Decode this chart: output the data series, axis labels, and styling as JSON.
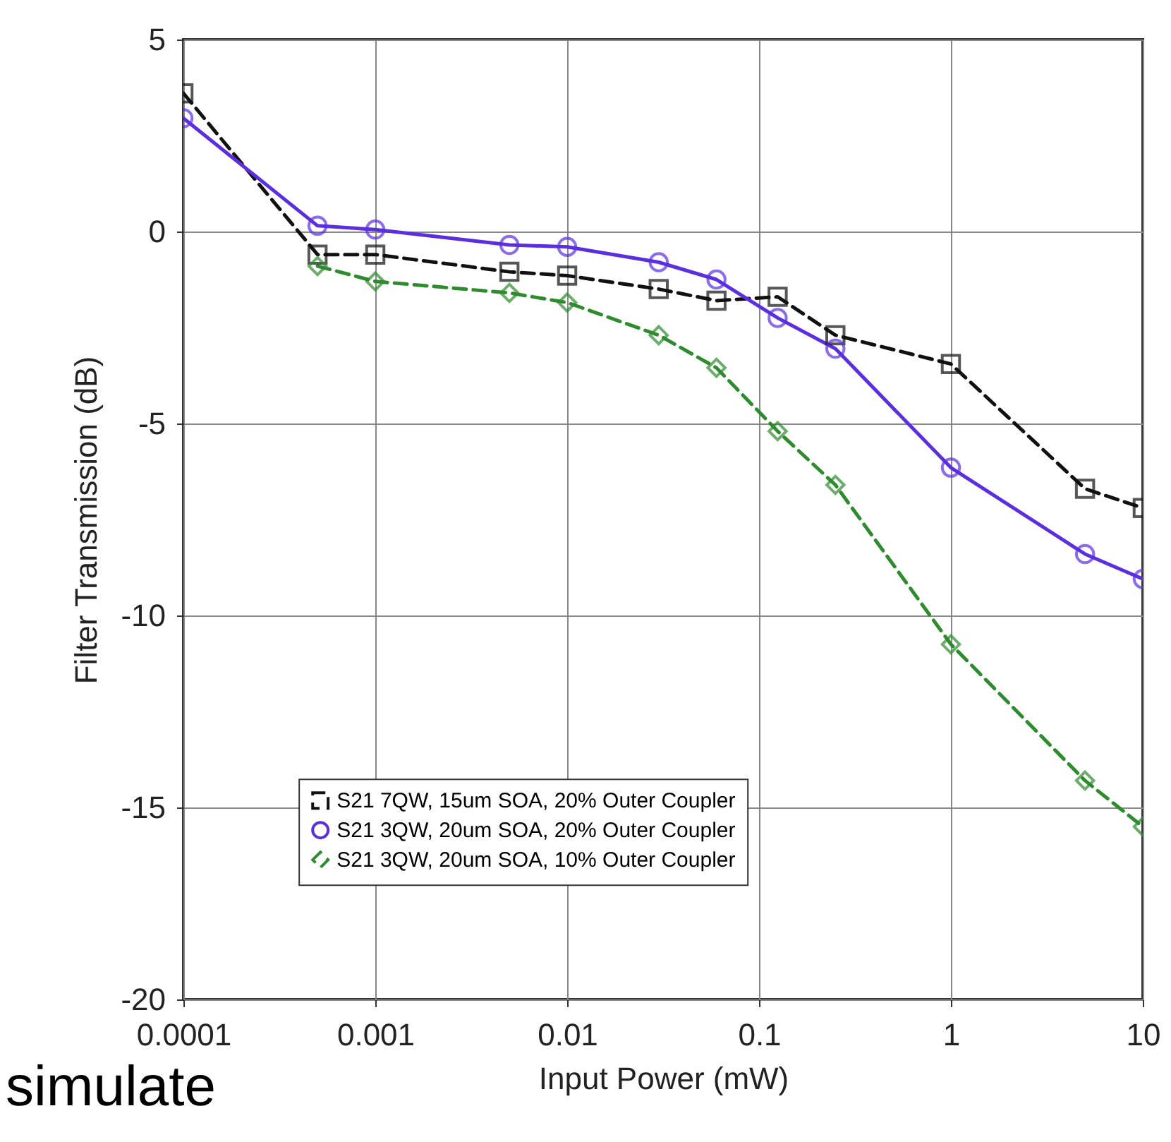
{
  "chart_data": {
    "type": "line",
    "xlabel": "Input Power (mW)",
    "ylabel": "Filter Transmission (dB)",
    "x": [
      0.0001,
      0.0005,
      0.001,
      0.005,
      0.01,
      0.03,
      0.06,
      0.125,
      0.25,
      1,
      5,
      10
    ],
    "series": [
      {
        "name": "S21 7QW, 15um SOA, 20% Outer Coupler",
        "color": "#111111",
        "marker": "square",
        "line_style": "dashed",
        "values": [
          3.6,
          -0.6,
          -0.6,
          -1.05,
          -1.15,
          -1.5,
          -1.8,
          -1.7,
          -2.7,
          -3.45,
          -6.7,
          -7.2
        ]
      },
      {
        "name": "S21 3QW, 20um SOA, 20% Outer Coupler",
        "color": "#5b2ee0",
        "marker": "circle",
        "line_style": "solid",
        "values": [
          2.95,
          0.15,
          0.05,
          -0.35,
          -0.4,
          -0.8,
          -1.25,
          -2.25,
          -3.05,
          -6.15,
          -8.4,
          -9.05
        ]
      },
      {
        "name": "S21 3QW, 20um SOA, 10% Outer Coupler",
        "color": "#2e8b2e",
        "marker": "diamond",
        "line_style": "dashed",
        "values": [
          null,
          -0.9,
          -1.3,
          -1.6,
          -1.85,
          -2.7,
          -3.55,
          -5.2,
          -6.6,
          -10.75,
          -14.3,
          -15.5
        ]
      }
    ],
    "log": "x",
    "xlim": [
      0.0001,
      10
    ],
    "xticks": [
      0.0001,
      0.001,
      0.01,
      0.1,
      1,
      10
    ],
    "ylim": [
      -20,
      5
    ],
    "yticks": [
      -20,
      -15,
      -10,
      -5,
      0,
      5
    ],
    "grid": true,
    "legend": "bottom",
    "annotations": [
      "simulate"
    ]
  }
}
